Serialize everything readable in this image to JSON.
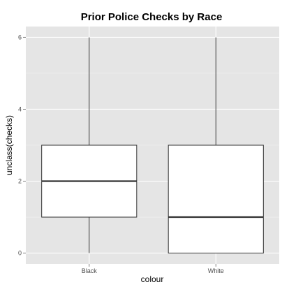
{
  "chart_data": {
    "type": "boxplot",
    "title": "Prior Police Checks by Race",
    "xlabel": "colour",
    "ylabel": "unclass(checks)",
    "categories": [
      "Black",
      "White"
    ],
    "boxes": [
      {
        "category": "Black",
        "min": 0,
        "q1": 1,
        "median": 2,
        "q3": 3,
        "max": 6
      },
      {
        "category": "White",
        "min": 0,
        "q1": 0,
        "median": 1,
        "q3": 3,
        "max": 6
      }
    ],
    "ylim": [
      -0.3,
      6.3
    ],
    "yticks": [
      0,
      2,
      4,
      6
    ],
    "grid": true,
    "colors": {
      "panel": "#e5e5e5",
      "grid_major": "#ffffff",
      "grid_minor": "#f2f2f2",
      "box_fill": "#ffffff",
      "box_stroke": "#333333"
    }
  }
}
